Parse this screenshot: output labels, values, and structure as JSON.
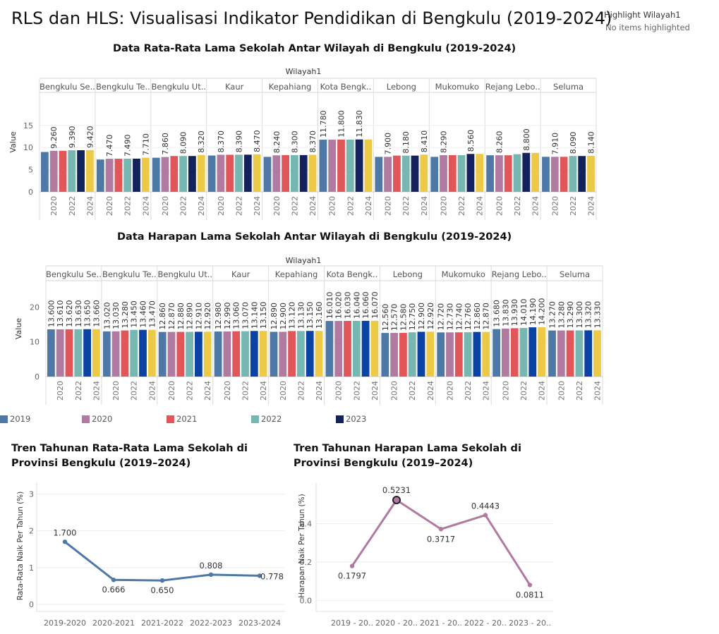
{
  "page": {
    "title": "RLS dan HLS: Visualisasi Indikator Pendidikan di Bengkulu (2019-2024)",
    "highlight_label": "Highlight Wilayah1",
    "highlight_value": "No items highlighted"
  },
  "colors": {
    "2019": "#4e79a7",
    "2020": "#b07aa1",
    "2021": "#e15759",
    "2022": "#76b7b2",
    "2023_rls": "#13215d",
    "2023_hls": "#0b43a4",
    "2024": "#edc948",
    "trend_rls": "#4e79a7",
    "trend_hls": "#b07aa1"
  },
  "legend": [
    "2019",
    "2020",
    "2021",
    "2022",
    "2023"
  ],
  "chart_data": [
    {
      "type": "bar",
      "title": "Data Rata-Rata Lama Sekolah Antar Wilayah di Bengkulu (2019-2024)",
      "facet_label": "Wilayah1",
      "ylabel": "Value",
      "ylim": [
        0,
        18
      ],
      "yticks": [
        "0",
        "5",
        "10",
        "15"
      ],
      "xtick_labels": [
        "2020",
        "2022",
        "2024"
      ],
      "regions": [
        "Bengkulu Se..",
        "Bengkulu Te..",
        "Bengkulu Ut..",
        "Kaur",
        "Kepahiang",
        "Kota Bengk..",
        "Lebong",
        "Mukomuko",
        "Rejang Lebo..",
        "Seluma"
      ],
      "years": [
        "2019",
        "2020",
        "2021",
        "2022",
        "2023",
        "2024"
      ],
      "values": [
        [
          9.0,
          9.26,
          9.26,
          9.39,
          9.39,
          9.42
        ],
        [
          7.3,
          7.47,
          7.47,
          7.49,
          7.49,
          7.71
        ],
        [
          7.7,
          7.86,
          8.09,
          8.09,
          8.09,
          8.32
        ],
        [
          8.2,
          8.37,
          8.37,
          8.39,
          8.39,
          8.47
        ],
        [
          7.9,
          8.24,
          8.3,
          8.3,
          8.3,
          8.37
        ],
        [
          11.78,
          11.78,
          11.8,
          11.8,
          11.83,
          11.83
        ],
        [
          7.9,
          7.9,
          8.18,
          8.18,
          8.18,
          8.41
        ],
        [
          7.9,
          8.29,
          8.29,
          8.29,
          8.56,
          8.56
        ],
        [
          8.26,
          8.26,
          8.26,
          8.5,
          8.8,
          8.8
        ],
        [
          7.91,
          7.91,
          7.91,
          8.09,
          8.09,
          8.14
        ]
      ],
      "labels": [
        [
          "",
          "9.260",
          "",
          "9.390",
          "",
          "9.420"
        ],
        [
          "",
          "7.470",
          "",
          "7.490",
          "",
          "7.710"
        ],
        [
          "",
          "7.860",
          "",
          "8.090",
          "",
          "8.320"
        ],
        [
          "",
          "8.370",
          "",
          "8.390",
          "",
          "8.470"
        ],
        [
          "",
          "8.240",
          "",
          "8.300",
          "",
          "8.370"
        ],
        [
          "11.780",
          "",
          "11.800",
          "",
          "11.830",
          ""
        ],
        [
          "",
          "7.900",
          "",
          "8.180",
          "",
          "8.410"
        ],
        [
          "",
          "8.290",
          "",
          "",
          "8.560",
          ""
        ],
        [
          "",
          "8.260",
          "",
          "",
          "8.800",
          ""
        ],
        [
          "",
          "7.910",
          "",
          "8.090",
          "",
          "8.140"
        ]
      ]
    },
    {
      "type": "bar",
      "title": "Data Harapan Lama Sekolah Antar Wilayah di Bengkulu (2019-2024)",
      "facet_label": "Wilayah1",
      "ylabel": "Value",
      "ylim": [
        0,
        27
      ],
      "yticks": [
        "0",
        "10",
        "20"
      ],
      "xtick_labels": [
        "2020",
        "2022",
        "2024"
      ],
      "regions": [
        "Bengkulu Se..",
        "Bengkulu Te..",
        "Bengkulu Ut..",
        "Kaur",
        "Kepahiang",
        "Kota Bengk..",
        "Lebong",
        "Mukomuko",
        "Rejang Lebo..",
        "Seluma"
      ],
      "years": [
        "2019",
        "2020",
        "2021",
        "2022",
        "2023",
        "2024"
      ],
      "values": [
        [
          13.6,
          13.61,
          13.62,
          13.63,
          13.65,
          13.66
        ],
        [
          13.02,
          13.03,
          13.28,
          13.45,
          13.46,
          13.47
        ],
        [
          12.86,
          12.87,
          12.88,
          12.89,
          12.91,
          12.92
        ],
        [
          12.98,
          12.99,
          13.06,
          13.07,
          13.14,
          13.15
        ],
        [
          12.89,
          12.9,
          13.12,
          13.13,
          13.15,
          13.16
        ],
        [
          16.01,
          16.02,
          16.03,
          16.04,
          16.06,
          16.07
        ],
        [
          12.56,
          12.57,
          12.58,
          12.75,
          12.9,
          12.92
        ],
        [
          12.72,
          12.73,
          12.74,
          12.76,
          12.86,
          12.87
        ],
        [
          13.68,
          13.83,
          13.93,
          14.01,
          14.19,
          14.2
        ],
        [
          13.27,
          13.28,
          13.29,
          13.3,
          13.32,
          13.33
        ]
      ],
      "labels": [
        [
          "13.600",
          "13.610",
          "13.620",
          "13.630",
          "13.650",
          "13.660"
        ],
        [
          "13.020",
          "13.030",
          "13.280",
          "13.450",
          "13.460",
          "13.470"
        ],
        [
          "12.860",
          "12.870",
          "12.880",
          "12.890",
          "12.910",
          "12.920"
        ],
        [
          "12.980",
          "12.990",
          "13.060",
          "13.070",
          "13.140",
          "13.150"
        ],
        [
          "12.890",
          "12.900",
          "13.120",
          "13.130",
          "13.150",
          "13.160"
        ],
        [
          "16.010",
          "16.020",
          "16.030",
          "16.040",
          "16.060",
          "16.070"
        ],
        [
          "12.560",
          "12.570",
          "12.580",
          "12.750",
          "12.900",
          "12.920"
        ],
        [
          "12.720",
          "12.730",
          "12.740",
          "12.760",
          "12.860",
          "12.870"
        ],
        [
          "13.680",
          "13.830",
          "13.930",
          "14.010",
          "14.190",
          "14.200"
        ],
        [
          "13.270",
          "13.280",
          "13.290",
          "13.300",
          "13.320",
          "13.330"
        ]
      ]
    },
    {
      "type": "line",
      "title": "Tren Tahunan Rata-Rata Lama Sekolah di Provinsi Bengkulu (2019–2024)",
      "x": [
        "2019-2020",
        "2020-2021",
        "2021-2022",
        "2022-2023",
        "2023-2024"
      ],
      "y": [
        1.7,
        0.666,
        0.65,
        0.808,
        0.778
      ],
      "labels": [
        "1.700",
        "0.666",
        "0.650",
        "0.808",
        "0.778"
      ],
      "label_pos": [
        "above",
        "below",
        "below",
        "above",
        "right"
      ],
      "ylabel": "Rata-Rata Naik Per Tahun (%)",
      "ylim": [
        0,
        3.2
      ],
      "yticks": [
        "0",
        "1",
        "2",
        "3"
      ]
    },
    {
      "type": "line",
      "title": "Tren Tahunan Harapan Lama Sekolah di Provinsi Bengkulu (2019–2024)",
      "x": [
        "2019 - 20..",
        "2020 - 20..",
        "2021 - 20..",
        "2022 - 20..",
        "2023 - 20.."
      ],
      "y": [
        0.1797,
        0.5231,
        0.3717,
        0.4443,
        0.0811
      ],
      "labels": [
        "0.1797",
        "0.5231",
        "0.3717",
        "0.4443",
        "0.0811"
      ],
      "label_pos": [
        "below",
        "above",
        "below",
        "above",
        "below"
      ],
      "ylabel": "Harapan Naik Per Tahun (%)",
      "ylim": [
        -0.02,
        0.58
      ],
      "yticks": [
        "0.0",
        "0.2",
        "0.4"
      ]
    }
  ]
}
